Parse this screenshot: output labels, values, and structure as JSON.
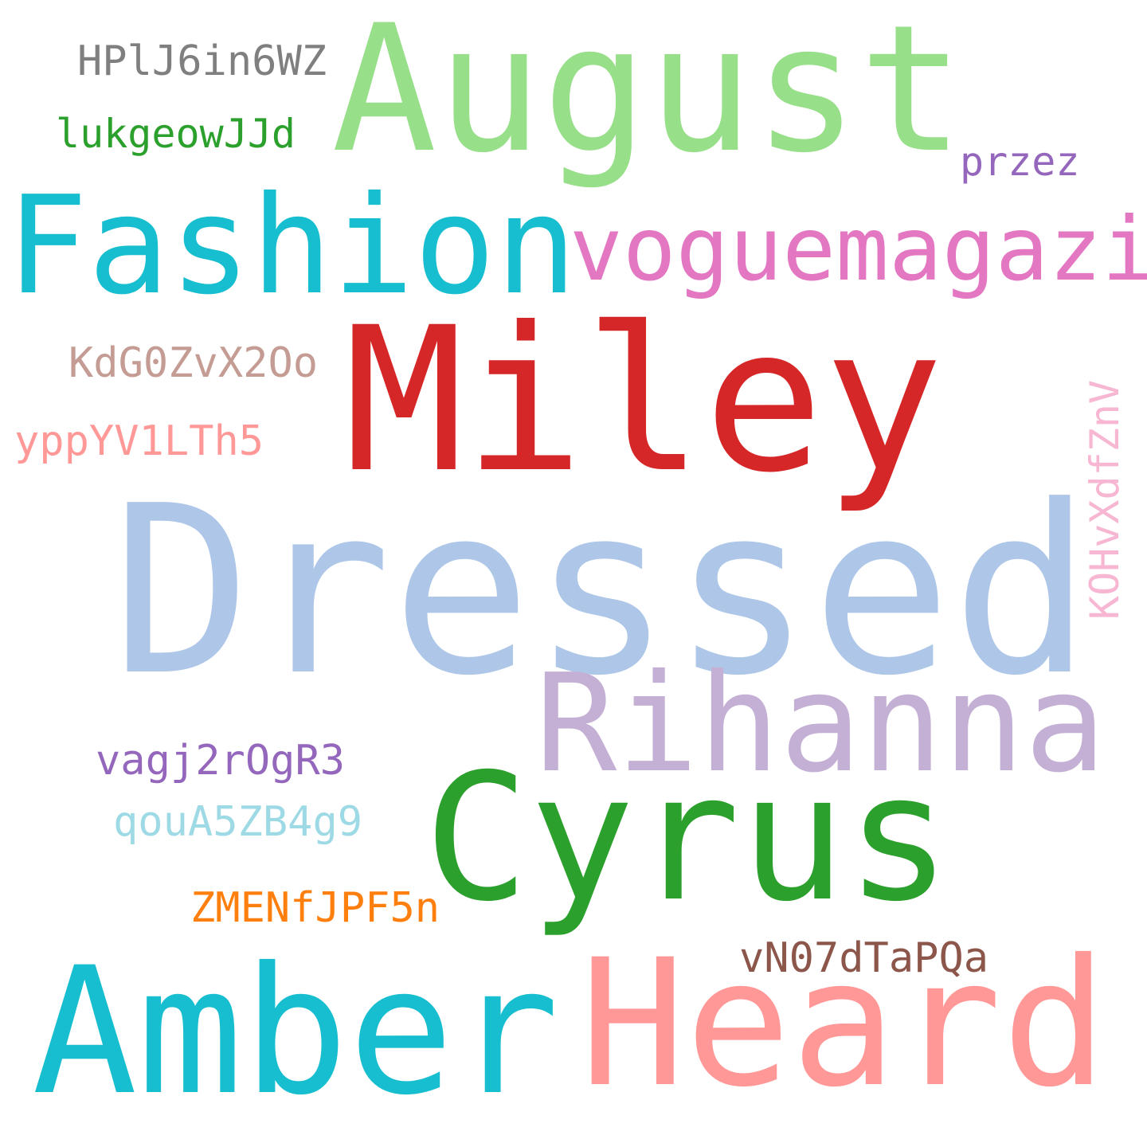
{
  "words": {
    "august": {
      "text": "August",
      "color": "#98df8a"
    },
    "hpl": {
      "text": "HPlJ6in6WZ",
      "color": "#7f7f7f"
    },
    "lukge": {
      "text": "lukgeowJJd",
      "color": "#2ca02c"
    },
    "przez": {
      "text": "przez",
      "color": "#9467bd"
    },
    "fashion": {
      "text": "Fashion",
      "color": "#17becf"
    },
    "vogue": {
      "text": "voguemagazine",
      "color": "#e377c2"
    },
    "miley": {
      "text": "Miley",
      "color": "#d62728"
    },
    "kdg": {
      "text": "KdG0ZvX2Oo",
      "color": "#c49c94"
    },
    "yppy": {
      "text": "yppYV1LTh5",
      "color": "#ff9896"
    },
    "kohv": {
      "text": "KOHvXdfZnV",
      "color": "#f7b6d2"
    },
    "dressed": {
      "text": "Dressed",
      "color": "#aec7e8"
    },
    "rihanna": {
      "text": "Rihanna",
      "color": "#c5b0d5"
    },
    "vagj": {
      "text": "vagj2rOgR3",
      "color": "#9467bd"
    },
    "cyrus": {
      "text": "Cyrus",
      "color": "#2ca02c"
    },
    "qoua": {
      "text": "qouA5ZB4g9",
      "color": "#9edae5"
    },
    "zmen": {
      "text": "ZMENfJPF5n",
      "color": "#ff7f0e"
    },
    "vn07": {
      "text": "vN07dTaPQa",
      "color": "#8c564b"
    },
    "amber": {
      "text": "Amber",
      "color": "#17becf"
    },
    "heard": {
      "text": "Heard",
      "color": "#ff9896"
    }
  }
}
